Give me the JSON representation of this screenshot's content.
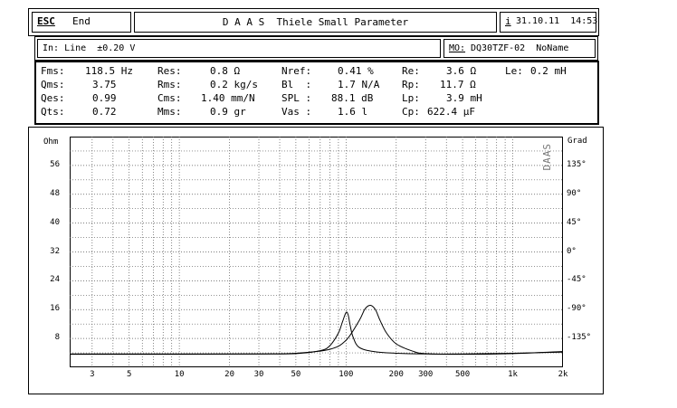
{
  "header": {
    "esc_label": "ESC",
    "end_label": "End",
    "title": "D A A S  Thiele Small Parameter",
    "info_label": "i",
    "datetime": "31.10.11  14:53"
  },
  "input_bar": {
    "input_text": "In: Line  ±0.20 V",
    "model_label": "MO:",
    "model_text": "DQ30TZF-02  NoName"
  },
  "params": {
    "fms_label": "Fms:",
    "fms_value": "118.5 Hz",
    "qms_label": "Qms:",
    "qms_value": "3.75",
    "qes_label": "Qes:",
    "qes_value": "0.99",
    "qts_label": "Qts:",
    "qts_value": "0.72",
    "res_label": "Res:",
    "res_value": "0.8 Ω",
    "rms_label": "Rms:",
    "rms_value": "0.2 kg/s",
    "cms_label": "Cms:",
    "cms_value": "1.40 mm/N",
    "mms_label": "Mms:",
    "mms_value": "0.9 gr",
    "nref_label": "Nref:",
    "nref_value": "0.41 %",
    "bl_label": "Bl  :",
    "bl_value": "1.7 N/A",
    "spl_label": "SPL :",
    "spl_value": "88.1 dB",
    "vas_label": "Vas :",
    "vas_value": "1.6 l",
    "re_label": "Re:",
    "re_value": "3.6 Ω",
    "rp_label": "Rp:",
    "rp_value": "11.7 Ω",
    "lp_label": "Lp:",
    "lp_value": "3.9 mH",
    "cp_label": "Cp:",
    "cp_value": "622.4 μF",
    "le_label": "Le:",
    "le_value": "0.2 mH"
  },
  "chart_data": {
    "type": "line",
    "ylabel_left": "Ohm",
    "ylabel_right": "Grad",
    "side_label": "DAAS",
    "x_scale": "log",
    "xlim": [
      2.2,
      2000
    ],
    "ylim_left": [
      0,
      64
    ],
    "ylim_right": [
      -180,
      180
    ],
    "grid": true,
    "x_ticks": [
      3,
      5,
      10,
      20,
      30,
      50,
      100,
      200,
      300,
      500,
      1000,
      2000
    ],
    "x_tick_labels": [
      "3",
      "5",
      "10",
      "20",
      "30",
      "50",
      "100",
      "200",
      "300",
      "500",
      "1k",
      "2k"
    ],
    "y_left_ticks": [
      0,
      8,
      16,
      24,
      32,
      40,
      48,
      56
    ],
    "y_left_tick_labels": [
      "",
      "8",
      "16",
      "24",
      "32",
      "40",
      "48",
      "56"
    ],
    "y_right_ticks": [
      -135,
      -90,
      -45,
      0,
      45,
      90,
      135
    ],
    "y_right_tick_labels": [
      "-135°",
      "-90°",
      "-45°",
      "0°",
      "45°",
      "90°",
      "135°"
    ],
    "series": [
      {
        "x": [
          2.2,
          10,
          30,
          50,
          70,
          80,
          90,
          95,
          100,
          103,
          106,
          110,
          120,
          150,
          200,
          300,
          500,
          1000,
          2000
        ],
        "y": [
          3.7,
          3.7,
          3.7,
          3.8,
          4.6,
          6,
          9.5,
          12.5,
          15.2,
          14.5,
          11.5,
          8.5,
          5.5,
          4.3,
          3.9,
          3.7,
          3.7,
          3.9,
          4.2
        ]
      },
      {
        "x": [
          2.2,
          10,
          30,
          50,
          80,
          100,
          120,
          130,
          140,
          150,
          160,
          175,
          200,
          250,
          300,
          500,
          1000,
          2000
        ],
        "y": [
          3.6,
          3.6,
          3.7,
          3.9,
          5,
          7.5,
          13,
          16.2,
          17.2,
          16,
          13,
          9.5,
          6.5,
          4.5,
          3.8,
          3.6,
          3.8,
          4.4
        ]
      }
    ]
  }
}
